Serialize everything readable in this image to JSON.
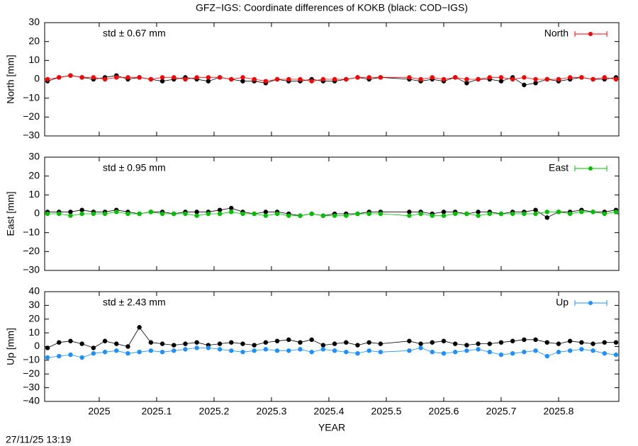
{
  "title": "GFZ−IGS: Coordinate differences of KOKB (black: COD−IGS)",
  "footer": "27/11/25 13:19",
  "chart_data": [
    {
      "type": "line",
      "ylabel": "North [mm]",
      "annotation": "std ± 0.67 mm",
      "annotation_color": "#ff0000",
      "legend": "upper right",
      "x": [
        2024.91,
        2024.93,
        2024.95,
        2024.97,
        2024.99,
        2025.01,
        2025.03,
        2025.05,
        2025.07,
        2025.09,
        2025.11,
        2025.13,
        2025.15,
        2025.17,
        2025.19,
        2025.21,
        2025.23,
        2025.25,
        2025.27,
        2025.29,
        2025.31,
        2025.33,
        2025.35,
        2025.37,
        2025.39,
        2025.41,
        2025.43,
        2025.45,
        2025.47,
        2025.49,
        2025.54,
        2025.56,
        2025.58,
        2025.6,
        2025.62,
        2025.64,
        2025.66,
        2025.68,
        2025.7,
        2025.72,
        2025.74,
        2025.76,
        2025.78,
        2025.8,
        2025.82,
        2025.84,
        2025.86,
        2025.88,
        2025.9
      ],
      "xlim": [
        2024.905,
        2025.905
      ],
      "xticks": [
        2025,
        2025.1,
        2025.2,
        2025.3,
        2025.4,
        2025.5,
        2025.6,
        2025.7,
        2025.8
      ],
      "ylim": [
        -30,
        30
      ],
      "yticks": [
        {
          "value": -30,
          "label": "−30"
        },
        {
          "value": -20,
          "label": "−20"
        },
        {
          "value": -10,
          "label": "−10"
        },
        0,
        10,
        20,
        30
      ],
      "series": [
        {
          "color": "#000000",
          "values": [
            -1,
            1,
            2,
            1,
            0,
            1,
            2,
            0,
            1,
            0,
            -1,
            0,
            1,
            0,
            -1,
            1,
            0,
            -1,
            -1,
            -2,
            0,
            -1,
            -1,
            0,
            -1,
            -1,
            0,
            1,
            0,
            1,
            0,
            -1,
            0,
            -1,
            1,
            -2,
            0,
            0,
            -1,
            1,
            -3,
            -2,
            0,
            -1,
            0,
            1,
            0,
            0,
            1
          ]
        },
        {
          "name": "North",
          "color": "#ff0000",
          "values": [
            0,
            1,
            2,
            1,
            1,
            0,
            1,
            1,
            1,
            0,
            1,
            1,
            0,
            1,
            1,
            1,
            0,
            1,
            0,
            -1,
            0,
            0,
            0,
            -1,
            0,
            0,
            0,
            1,
            1,
            1,
            1,
            0,
            1,
            0,
            1,
            0,
            0,
            1,
            1,
            0,
            1,
            0,
            0,
            0,
            1,
            1,
            0,
            1,
            0
          ]
        }
      ]
    },
    {
      "type": "line",
      "ylabel": "East [mm]",
      "annotation": "std ± 0.95 mm",
      "annotation_color": "#00c000",
      "legend": "upper right",
      "x": [
        2024.91,
        2024.93,
        2024.95,
        2024.97,
        2024.99,
        2025.01,
        2025.03,
        2025.05,
        2025.07,
        2025.09,
        2025.11,
        2025.13,
        2025.15,
        2025.17,
        2025.19,
        2025.21,
        2025.23,
        2025.25,
        2025.27,
        2025.29,
        2025.31,
        2025.33,
        2025.35,
        2025.37,
        2025.39,
        2025.41,
        2025.43,
        2025.45,
        2025.47,
        2025.49,
        2025.54,
        2025.56,
        2025.58,
        2025.6,
        2025.62,
        2025.64,
        2025.66,
        2025.68,
        2025.7,
        2025.72,
        2025.74,
        2025.76,
        2025.78,
        2025.8,
        2025.82,
        2025.84,
        2025.86,
        2025.88,
        2025.9
      ],
      "xlim": [
        2024.905,
        2025.905
      ],
      "xticks": [
        2025,
        2025.1,
        2025.2,
        2025.3,
        2025.4,
        2025.5,
        2025.6,
        2025.7,
        2025.8
      ],
      "ylim": [
        -30,
        30
      ],
      "yticks": [
        {
          "value": -30,
          "label": "−30"
        },
        {
          "value": -20,
          "label": "−20"
        },
        {
          "value": -10,
          "label": "−10"
        },
        0,
        10,
        20,
        30
      ],
      "series": [
        {
          "color": "#000000",
          "values": [
            1,
            1,
            1,
            2,
            1,
            1,
            2,
            1,
            0,
            1,
            1,
            0,
            1,
            1,
            1,
            2,
            3,
            1,
            0,
            1,
            1,
            0,
            -1,
            0,
            -1,
            0,
            0,
            0,
            1,
            1,
            1,
            1,
            0,
            1,
            1,
            0,
            1,
            1,
            0,
            1,
            1,
            2,
            -2,
            1,
            1,
            2,
            1,
            1,
            2
          ]
        },
        {
          "name": "East",
          "color": "#00c000",
          "values": [
            0,
            0,
            -1,
            0,
            0,
            0,
            1,
            0,
            0,
            1,
            0,
            0,
            0,
            -1,
            0,
            0,
            1,
            0,
            0,
            -1,
            0,
            -1,
            -1,
            0,
            -1,
            -1,
            -1,
            0,
            0,
            0,
            -1,
            0,
            -1,
            -1,
            0,
            0,
            -1,
            0,
            0,
            0,
            0,
            0,
            1,
            1,
            0,
            1,
            1,
            0,
            1
          ]
        }
      ]
    },
    {
      "type": "line",
      "ylabel": "Up [mm]",
      "xlabel": "YEAR",
      "annotation": "std ± 2.43 mm",
      "annotation_color": "#1e90ff",
      "legend": "upper right",
      "x": [
        2024.91,
        2024.93,
        2024.95,
        2024.97,
        2024.99,
        2025.01,
        2025.03,
        2025.05,
        2025.07,
        2025.09,
        2025.11,
        2025.13,
        2025.15,
        2025.17,
        2025.19,
        2025.21,
        2025.23,
        2025.25,
        2025.27,
        2025.29,
        2025.31,
        2025.33,
        2025.35,
        2025.37,
        2025.39,
        2025.41,
        2025.43,
        2025.45,
        2025.47,
        2025.49,
        2025.54,
        2025.56,
        2025.58,
        2025.6,
        2025.62,
        2025.64,
        2025.66,
        2025.68,
        2025.7,
        2025.72,
        2025.74,
        2025.76,
        2025.78,
        2025.8,
        2025.82,
        2025.84,
        2025.86,
        2025.88,
        2025.9
      ],
      "xlim": [
        2024.905,
        2025.905
      ],
      "xticks": [
        2025,
        2025.1,
        2025.2,
        2025.3,
        2025.4,
        2025.5,
        2025.6,
        2025.7,
        2025.8
      ],
      "ylim": [
        -40,
        40
      ],
      "yticks": [
        {
          "value": -40,
          "label": "−40"
        },
        {
          "value": -30,
          "label": "−30"
        },
        {
          "value": -20,
          "label": "−20"
        },
        {
          "value": -10,
          "label": "−10"
        },
        0,
        10,
        20,
        30,
        40
      ],
      "series": [
        {
          "color": "#000000",
          "values": [
            -1,
            3,
            4,
            2,
            -1,
            4,
            2,
            0,
            14,
            3,
            2,
            1,
            2,
            3,
            1,
            2,
            3,
            2,
            1,
            3,
            4,
            5,
            3,
            5,
            1,
            2,
            3,
            1,
            3,
            2,
            4,
            2,
            3,
            4,
            2,
            1,
            2,
            2,
            3,
            4,
            5,
            5,
            3,
            2,
            4,
            3,
            2,
            3,
            3
          ]
        },
        {
          "name": "Up",
          "color": "#1e90ff",
          "values": [
            -8,
            -7,
            -6,
            -8,
            -5,
            -4,
            -3,
            -5,
            -4,
            -3,
            -4,
            -3,
            -2,
            -1,
            -1,
            -2,
            -3,
            -4,
            -3,
            -2,
            -3,
            -3,
            -2,
            -4,
            -2,
            -3,
            -4,
            -5,
            -3,
            -4,
            -3,
            -1,
            -4,
            -5,
            -4,
            -3,
            -2,
            -4,
            -6,
            -5,
            -4,
            -3,
            -7,
            -4,
            -3,
            -2,
            -3,
            -5,
            -6
          ]
        }
      ]
    }
  ]
}
